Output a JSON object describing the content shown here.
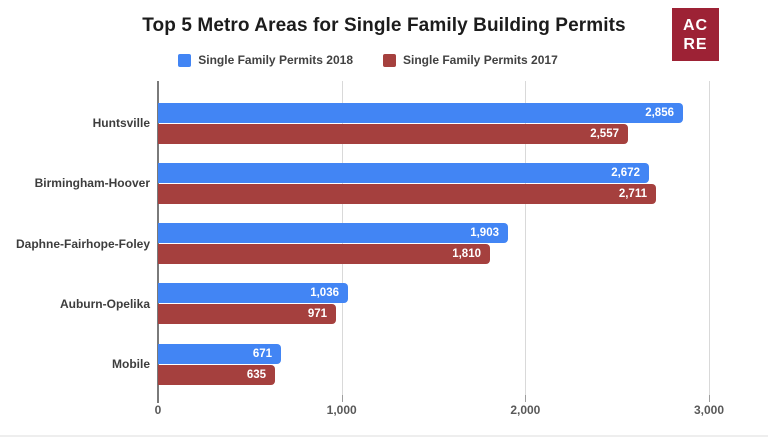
{
  "title": "Top 5 Metro Areas for Single Family Building Permits",
  "logo": {
    "line1": "AC",
    "line2": "RE",
    "bg_color": "#9d2235",
    "text_color": "#ffffff"
  },
  "legend": [
    {
      "label": "Single Family Permits 2018",
      "color": "#4285f4"
    },
    {
      "label": "Single Family Permits 2017",
      "color": "#a5403e"
    }
  ],
  "chart_data": {
    "type": "bar",
    "orientation": "horizontal",
    "title": "Top 5 Metro Areas for Single Family Building Permits",
    "categories": [
      "Huntsville",
      "Birmingham-Hoover",
      "Daphne-Fairhope-Foley",
      "Auburn-Opelika",
      "Mobile"
    ],
    "series": [
      {
        "name": "Single Family Permits 2018",
        "color": "#4285f4",
        "values": [
          2856,
          2672,
          1903,
          1036,
          671
        ],
        "labels": [
          "2,856",
          "2,672",
          "1,903",
          "1,036",
          "671"
        ]
      },
      {
        "name": "Single Family Permits 2017",
        "color": "#a5403e",
        "values": [
          2557,
          2711,
          1810,
          971,
          635
        ],
        "labels": [
          "2,557",
          "2,711",
          "1,810",
          "971",
          "635"
        ]
      }
    ],
    "xlabel": "",
    "ylabel": "",
    "xlim": [
      0,
      3140
    ],
    "x_ticks": [
      {
        "value": 0,
        "label": "0"
      },
      {
        "value": 1000,
        "label": "1,000"
      },
      {
        "value": 2000,
        "label": "2,000"
      },
      {
        "value": 3000,
        "label": "3,000"
      }
    ],
    "grid": true,
    "legend_position": "top",
    "value_labels_inside_bars": true
  }
}
